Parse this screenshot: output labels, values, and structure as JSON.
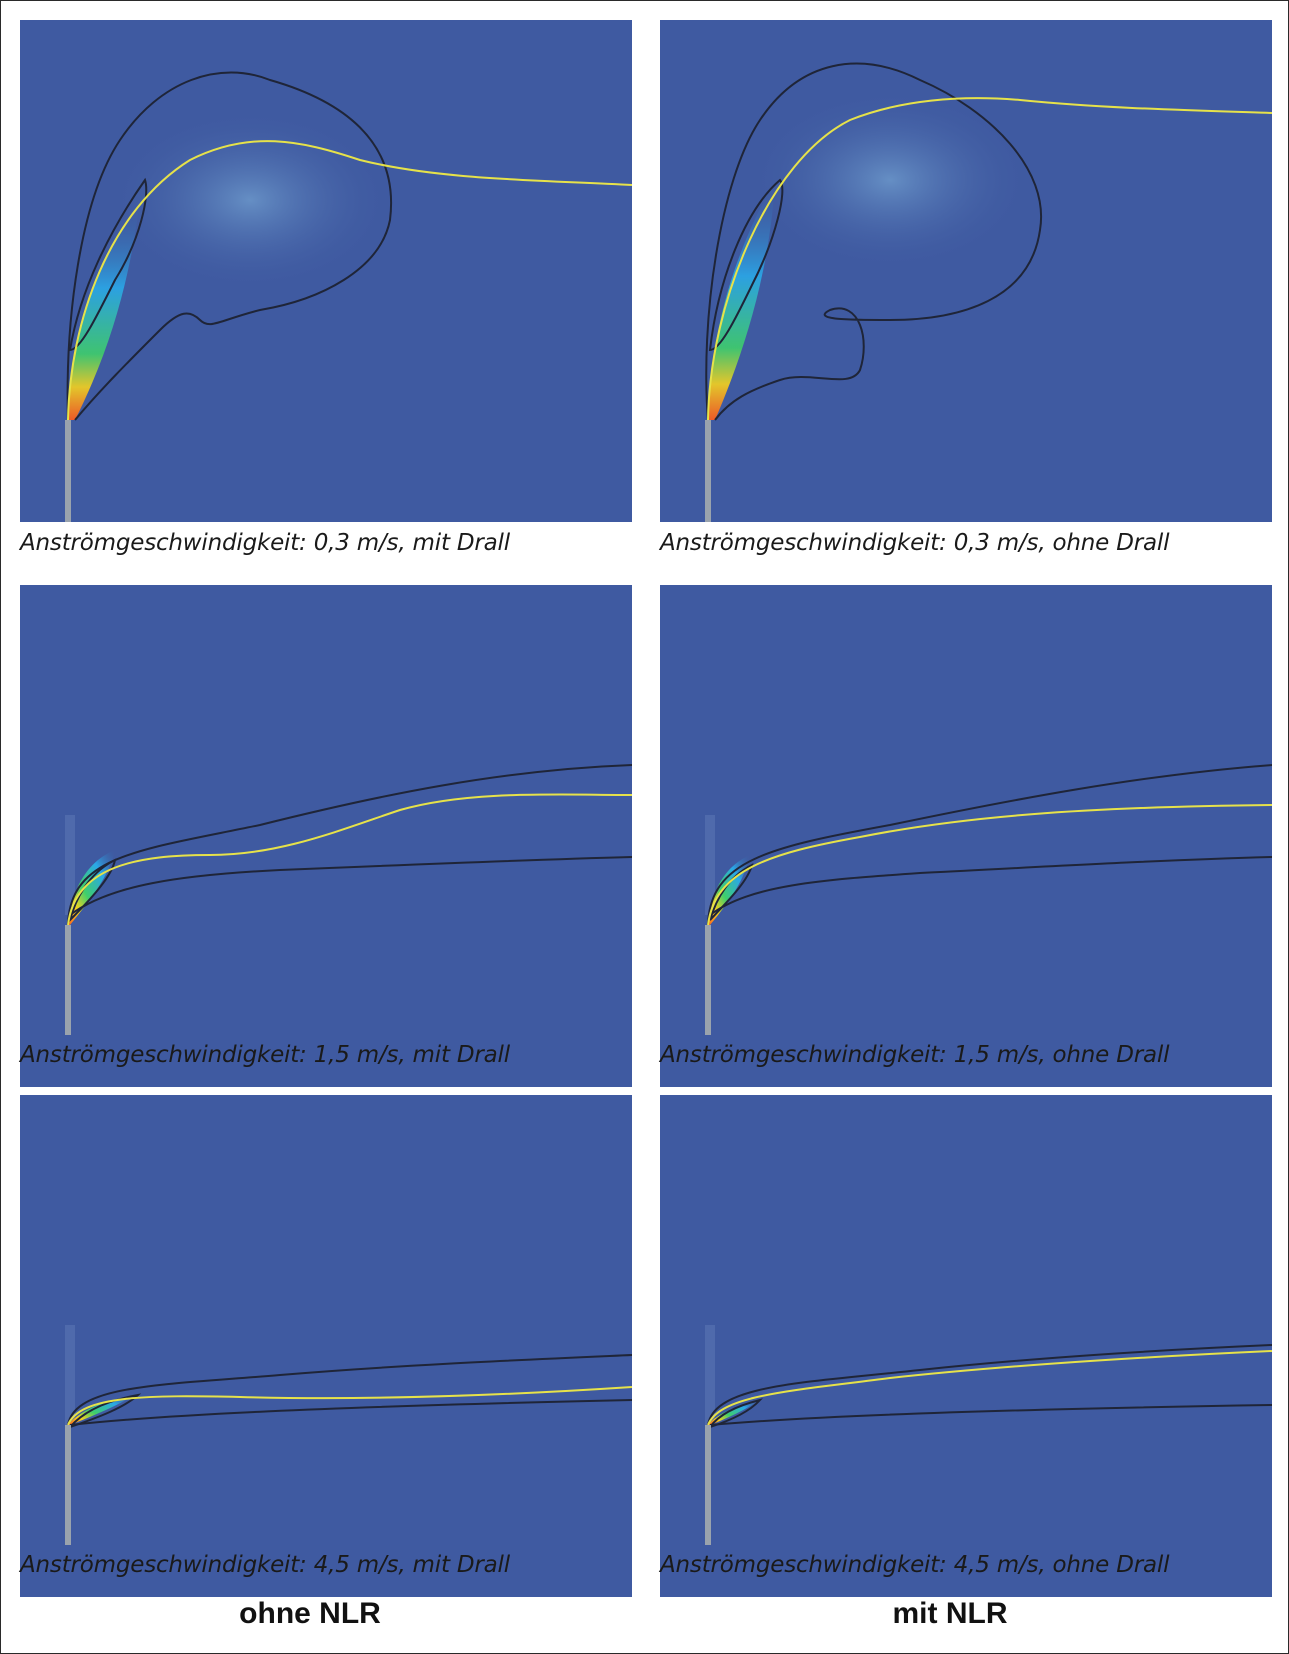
{
  "panels": [
    {
      "id": "p1",
      "caption": "Anströmgeschwindigkeit: 0,3 m/s, mit Drall"
    },
    {
      "id": "p2",
      "caption": "Anströmgeschwindigkeit: 0,3 m/s, ohne Drall"
    },
    {
      "id": "p3",
      "caption": "Anströmgeschwindigkeit: 1,5 m/s, mit Drall"
    },
    {
      "id": "p4",
      "caption": "Anströmgeschwindigkeit: 1,5 m/s, ohne Drall"
    },
    {
      "id": "p5",
      "caption": "Anströmgeschwindigkeit: 4,5 m/s, mit Drall"
    },
    {
      "id": "p6",
      "caption": "Anströmgeschwindigkeit: 4,5 m/s, ohne Drall"
    }
  ],
  "columns": {
    "left": "ohne NLR",
    "right": "mit NLR"
  },
  "colors": {
    "background": "#3f5aa1",
    "outline": "#1f2538",
    "centerline": "#e6e24a",
    "stack": "#9aa3ad"
  }
}
